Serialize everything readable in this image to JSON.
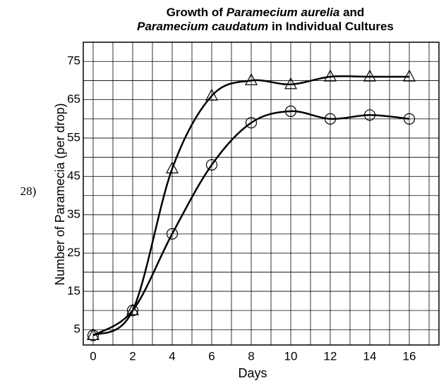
{
  "question_number": "28)",
  "chart_data": {
    "type": "line",
    "title": [
      [
        {
          "text": "Growth of "
        },
        {
          "text": "Paramecium aurelia",
          "italic": true
        },
        {
          "text": " and"
        }
      ],
      [
        {
          "text": "Paramecium caudatum",
          "italic": true
        },
        {
          "text": " in Individual Cultures"
        }
      ]
    ],
    "xlabel": "Days",
    "ylabel": "Number of Paramecia (per drop)",
    "x": [
      0,
      2,
      4,
      6,
      8,
      10,
      12,
      14,
      16
    ],
    "series": [
      {
        "marker": "triangle",
        "color": "#000000",
        "values": [
          3.5,
          10,
          47,
          66,
          70,
          69,
          71,
          71,
          71
        ]
      },
      {
        "marker": "circle",
        "color": "#000000",
        "values": [
          3.5,
          10,
          30,
          48,
          59,
          62,
          60,
          61,
          60
        ]
      }
    ],
    "xlim": [
      -0.5,
      17.5
    ],
    "ylim": [
      1,
      80
    ],
    "xticks": [
      0,
      2,
      4,
      6,
      8,
      10,
      12,
      14,
      16
    ],
    "yticks": [
      5,
      15,
      25,
      35,
      45,
      55,
      65,
      75
    ],
    "x_minor_grid": [
      1,
      3,
      5,
      7,
      9,
      11,
      13,
      15,
      17
    ],
    "y_minor_grid": [
      10,
      20,
      30,
      40,
      50,
      60,
      70,
      80
    ],
    "grid": true
  }
}
